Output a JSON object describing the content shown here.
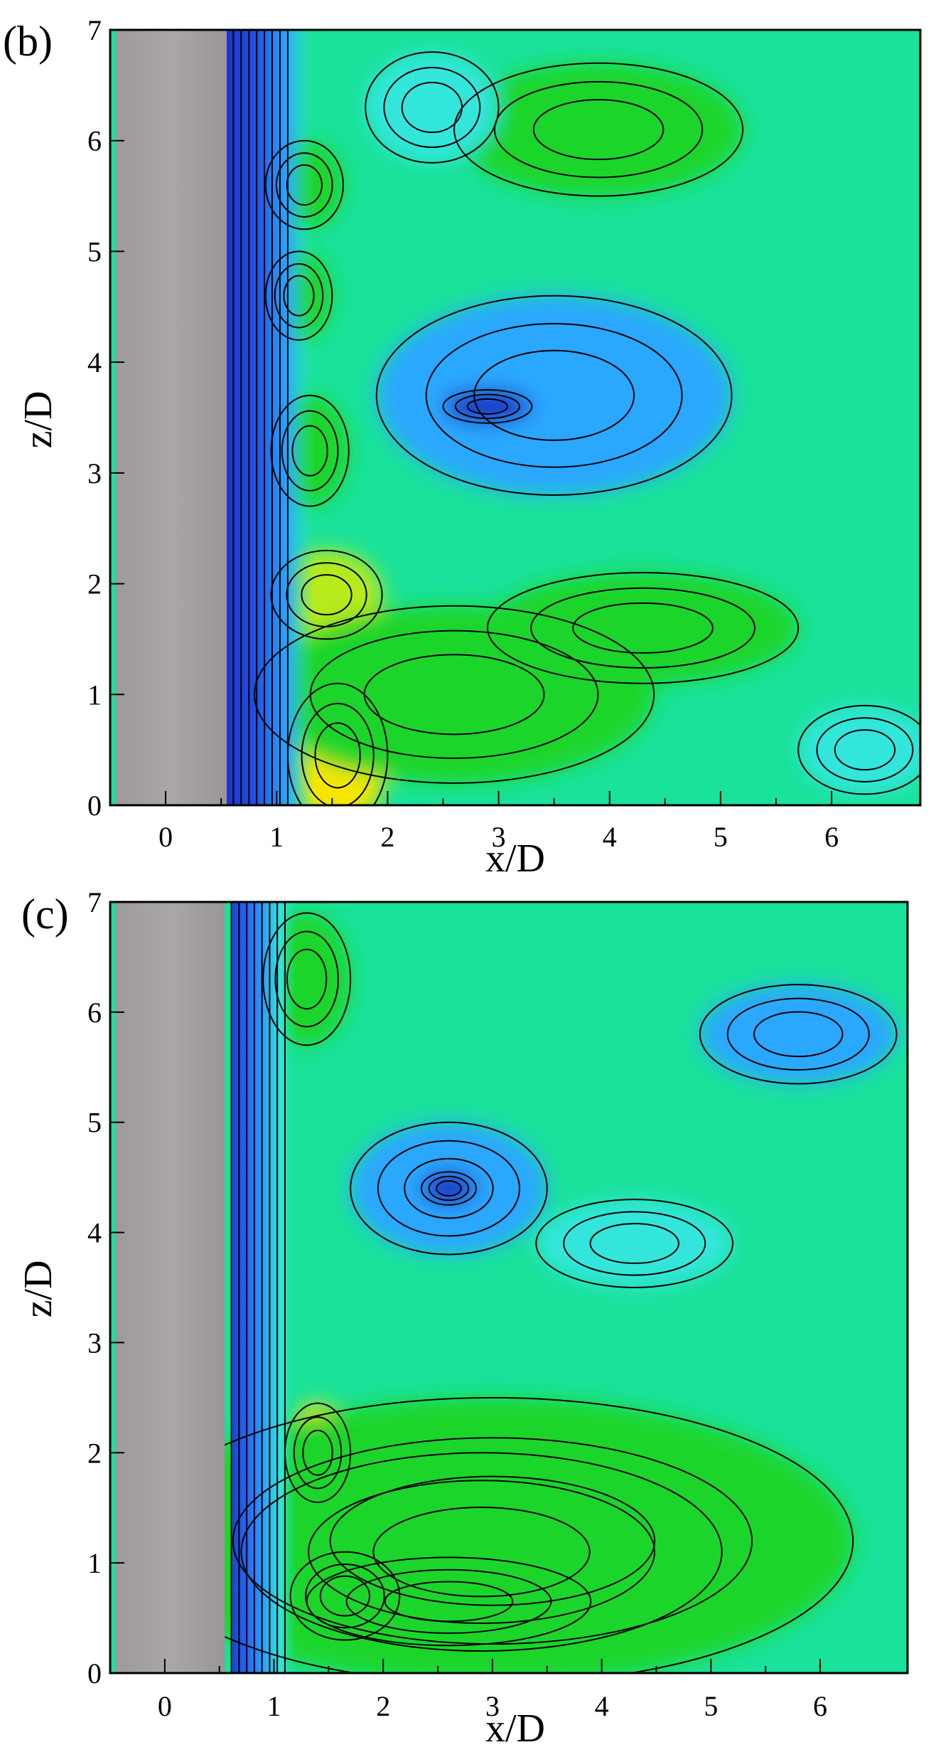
{
  "colors": {
    "cylinder": "#a8a4a5",
    "contour_line": "#000000",
    "low": "#1e2fc8",
    "mid_low": "#2aa7ff",
    "cyan": "#33e6dc",
    "mid": "#19e29a",
    "green": "#1bd52b",
    "yellow_green": "#b8ea1c",
    "yellow": "#f5e600",
    "high": "#f0a020"
  },
  "chart_data": [
    {
      "type": "heatmap",
      "panel_label": "(b)",
      "xlabel": "x/D",
      "ylabel": "z/D",
      "xlim": [
        -0.5,
        6.8
      ],
      "ylim": [
        0,
        7
      ],
      "x_ticks": [
        "0",
        "1",
        "2",
        "3",
        "4",
        "5",
        "6"
      ],
      "y_ticks": [
        "0",
        "1",
        "2",
        "3",
        "4",
        "5",
        "6",
        "7"
      ],
      "cylinder": {
        "x": [
          -0.45,
          0.55
        ],
        "z": [
          0,
          7
        ]
      },
      "blobs": [
        {
          "x": 1.55,
          "z": 0.45,
          "rx": 0.45,
          "rz": 0.65,
          "level": 7
        },
        {
          "x": 1.45,
          "z": 1.9,
          "rx": 0.5,
          "rz": 0.4,
          "level": 6
        },
        {
          "x": 2.6,
          "z": 1.0,
          "rx": 1.8,
          "rz": 0.8,
          "level": 5
        },
        {
          "x": 4.3,
          "z": 1.6,
          "rx": 1.4,
          "rz": 0.5,
          "level": 4
        },
        {
          "x": 1.3,
          "z": 3.2,
          "rx": 0.35,
          "rz": 0.5,
          "level": 4
        },
        {
          "x": 1.2,
          "z": 4.6,
          "rx": 0.3,
          "rz": 0.4,
          "level": 4
        },
        {
          "x": 1.25,
          "z": 5.6,
          "rx": 0.35,
          "rz": 0.4,
          "level": 4
        },
        {
          "x": 3.9,
          "z": 6.1,
          "rx": 1.3,
          "rz": 0.6,
          "level": 4
        },
        {
          "x": 3.5,
          "z": 3.7,
          "rx": 1.6,
          "rz": 0.9,
          "level": 1
        },
        {
          "x": 2.9,
          "z": 3.6,
          "rx": 0.4,
          "rz": 0.15,
          "level": 0
        },
        {
          "x": 2.4,
          "z": 6.3,
          "rx": 0.6,
          "rz": 0.5,
          "level": 2
        },
        {
          "x": 6.3,
          "z": 0.5,
          "rx": 0.6,
          "rz": 0.4,
          "level": 2
        }
      ]
    },
    {
      "type": "heatmap",
      "panel_label": "(c)",
      "xlabel": "x/D",
      "ylabel": "z/D",
      "xlim": [
        -0.5,
        6.8
      ],
      "ylim": [
        0,
        7
      ],
      "x_ticks": [
        "0",
        "1",
        "2",
        "3",
        "4",
        "5",
        "6"
      ],
      "y_ticks": [
        "0",
        "1",
        "2",
        "3",
        "4",
        "5",
        "6",
        "7"
      ],
      "cylinder": {
        "x": [
          -0.45,
          0.55
        ],
        "z": [
          0,
          7
        ]
      },
      "blobs": [
        {
          "x": 1.65,
          "z": 0.7,
          "rx": 0.5,
          "rz": 0.4,
          "level": 8
        },
        {
          "x": 2.6,
          "z": 0.65,
          "rx": 1.3,
          "rz": 0.4,
          "level": 7
        },
        {
          "x": 1.4,
          "z": 2.0,
          "rx": 0.3,
          "rz": 0.45,
          "level": 7
        },
        {
          "x": 2.9,
          "z": 1.1,
          "rx": 2.2,
          "rz": 0.9,
          "level": 6
        },
        {
          "x": 3.0,
          "z": 1.2,
          "rx": 3.3,
          "rz": 1.3,
          "level": 5
        },
        {
          "x": 1.3,
          "z": 6.3,
          "rx": 0.4,
          "rz": 0.6,
          "level": 5
        },
        {
          "x": 2.6,
          "z": 4.4,
          "rx": 0.9,
          "rz": 0.6,
          "level": 1
        },
        {
          "x": 5.8,
          "z": 5.8,
          "rx": 0.9,
          "rz": 0.45,
          "level": 1
        },
        {
          "x": 2.6,
          "z": 4.4,
          "rx": 0.25,
          "rz": 0.15,
          "level": 0
        },
        {
          "x": 4.3,
          "z": 3.9,
          "rx": 0.9,
          "rz": 0.4,
          "level": 2
        }
      ]
    }
  ]
}
